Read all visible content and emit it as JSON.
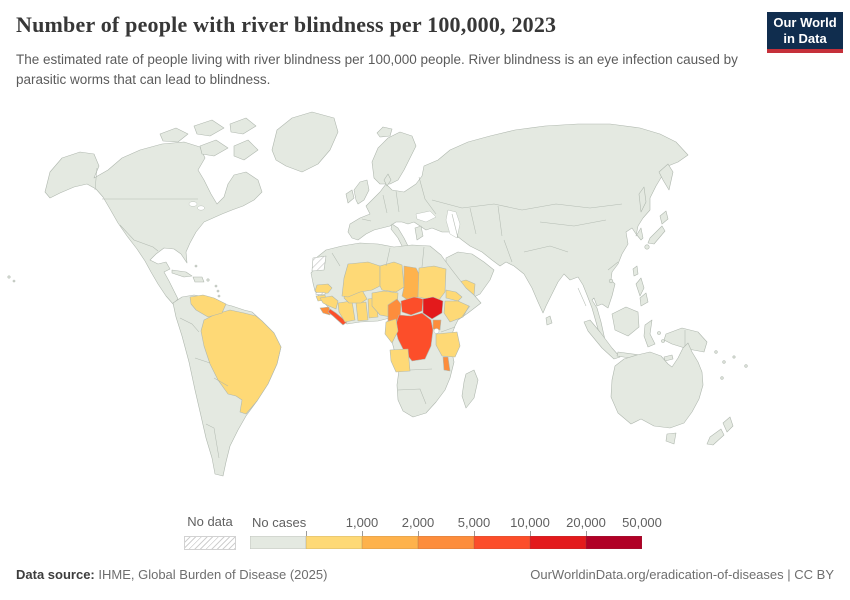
{
  "header": {
    "title": "Number of people with river blindness per 100,000, 2023",
    "subtitle": "The estimated rate of people living with river blindness per 100,000 people. River blindness is an eye infection caused by parasitic worms that can lead to blindness."
  },
  "logo": {
    "line1": "Our World",
    "line2": "in Data",
    "bg_color": "#102d4e",
    "accent_color": "#c5303a"
  },
  "legend": {
    "no_data": {
      "label": "No data"
    },
    "bar": {
      "segments": [
        {
          "label": "No cases",
          "color": "#e4e9e1",
          "label_position": "start"
        },
        {
          "label": "1,000",
          "color": "#fed976",
          "label_position": "end"
        },
        {
          "label": "2,000",
          "color": "#feb24c",
          "label_position": "end"
        },
        {
          "label": "5,000",
          "color": "#fd8d3c",
          "label_position": "end"
        },
        {
          "label": "10,000",
          "color": "#fc4e2a",
          "label_position": "end"
        },
        {
          "label": "20,000",
          "color": "#e31a1c",
          "label_position": "end"
        },
        {
          "label": "50,000",
          "color": "#b10026",
          "label_position": "end"
        }
      ]
    }
  },
  "footer": {
    "data_source_label": "Data source:",
    "data_source_value": " IHME, Global Burden of Disease (2025)",
    "link_text": "OurWorldinData.org/eradication-of-diseases",
    "separator": " | ",
    "license": "CC BY"
  },
  "map": {
    "ocean_color": "#ffffff",
    "land_default_color": "#e4e9e1",
    "border_color": "#b0b8af",
    "value_colors": {
      "v1000": "#fed976",
      "v2000": "#feb24c",
      "v5000": "#fd8d3c",
      "v10000": "#fc4e2a",
      "v20000": "#e31a1c",
      "v50000": "#b10026"
    }
  },
  "chart_data": {
    "type": "heatmap",
    "subtype": "world-choropleth-map",
    "title": "Number of people with river blindness per 100,000, 2023",
    "year": 2023,
    "unit": "people with river blindness per 100,000 people",
    "legend_position": "bottom",
    "color_scale": {
      "bins": [
        "No cases",
        "up to 1,000",
        "1,000-2,000",
        "2,000-5,000",
        "5,000-10,000",
        "10,000-20,000",
        "20,000-50,000"
      ],
      "colors": [
        "#e4e9e1",
        "#fed976",
        "#feb24c",
        "#fd8d3c",
        "#fc4e2a",
        "#e31a1c",
        "#b10026"
      ]
    },
    "countries": [
      {
        "name": "South Sudan",
        "bin": "10,000-20,000"
      },
      {
        "name": "Democratic Republic of Congo",
        "bin": "5,000-10,000"
      },
      {
        "name": "Central African Republic",
        "bin": "5,000-10,000"
      },
      {
        "name": "Liberia",
        "bin": "5,000-10,000"
      },
      {
        "name": "Cameroon",
        "bin": "2,000-5,000"
      },
      {
        "name": "Uganda",
        "bin": "2,000-5,000"
      },
      {
        "name": "Sierra Leone",
        "bin": "2,000-5,000"
      },
      {
        "name": "Malawi",
        "bin": "2,000-5,000"
      },
      {
        "name": "Chad",
        "bin": "1,000-2,000"
      },
      {
        "name": "Brazil",
        "bin": "up to 1,000"
      },
      {
        "name": "Venezuela",
        "bin": "up to 1,000"
      },
      {
        "name": "Yemen",
        "bin": "up to 1,000"
      },
      {
        "name": "Senegal",
        "bin": "up to 1,000"
      },
      {
        "name": "Guinea-Bissau",
        "bin": "up to 1,000"
      },
      {
        "name": "Guinea",
        "bin": "up to 1,000"
      },
      {
        "name": "Mali",
        "bin": "up to 1,000"
      },
      {
        "name": "Burkina Faso",
        "bin": "up to 1,000"
      },
      {
        "name": "Cote d'Ivoire",
        "bin": "up to 1,000"
      },
      {
        "name": "Ghana",
        "bin": "up to 1,000"
      },
      {
        "name": "Togo",
        "bin": "up to 1,000"
      },
      {
        "name": "Benin",
        "bin": "up to 1,000"
      },
      {
        "name": "Niger",
        "bin": "up to 1,000"
      },
      {
        "name": "Nigeria",
        "bin": "up to 1,000"
      },
      {
        "name": "Sudan",
        "bin": "up to 1,000"
      },
      {
        "name": "Eritrea",
        "bin": "up to 1,000"
      },
      {
        "name": "Ethiopia",
        "bin": "up to 1,000"
      },
      {
        "name": "Republic of Congo",
        "bin": "up to 1,000"
      },
      {
        "name": "Tanzania",
        "bin": "up to 1,000"
      },
      {
        "name": "Angola",
        "bin": "up to 1,000"
      }
    ],
    "rest_of_world": "No cases",
    "no_data_regions": [
      "Western Sahara",
      "Gambia"
    ]
  }
}
